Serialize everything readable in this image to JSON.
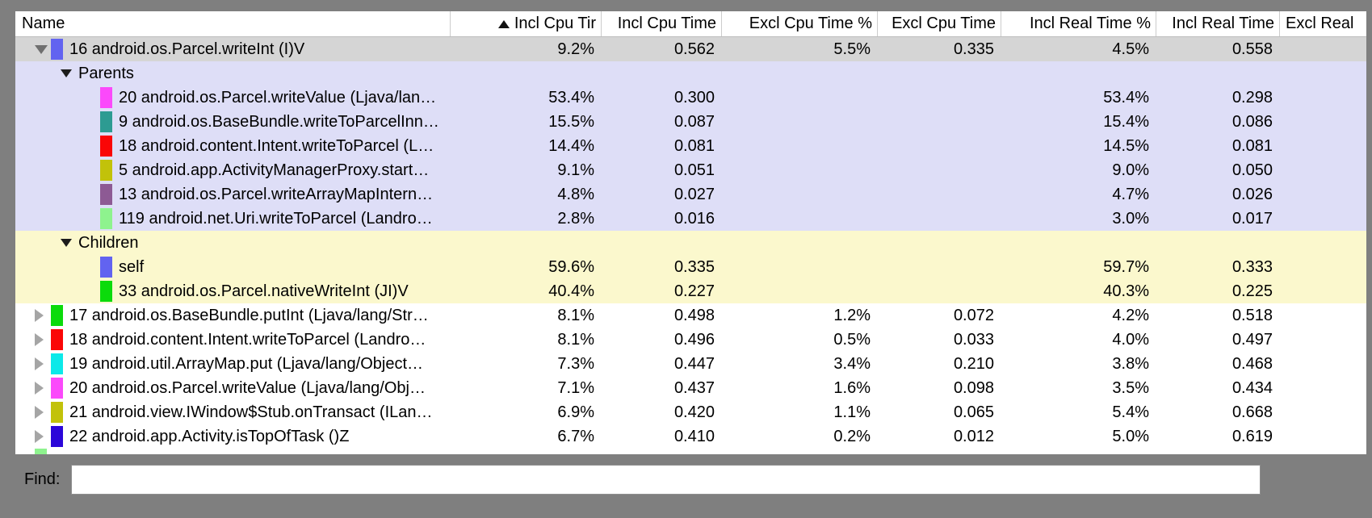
{
  "table": {
    "columns": [
      {
        "key": "name",
        "label": "Name",
        "sort_icon": false,
        "align": "name"
      },
      {
        "key": "incl-cpu-time-pct",
        "label": "Incl Cpu Tir",
        "sort_icon": true,
        "align": "val"
      },
      {
        "key": "incl-cpu-time",
        "label": "Incl Cpu Time",
        "sort_icon": false,
        "align": "val"
      },
      {
        "key": "excl-cpu-time-pct",
        "label": "Excl Cpu Time %",
        "sort_icon": false,
        "align": "val"
      },
      {
        "key": "excl-cpu-time",
        "label": "Excl Cpu Time",
        "sort_icon": false,
        "align": "val"
      },
      {
        "key": "incl-real-time-pct",
        "label": "Incl Real Time %",
        "sort_icon": false,
        "align": "val"
      },
      {
        "key": "incl-real-time",
        "label": "Incl Real Time",
        "sort_icon": false,
        "align": "val"
      },
      {
        "key": "excl-real-time",
        "label": "Excl Real",
        "sort_icon": false,
        "align": "left"
      }
    ],
    "rows": [
      {
        "name": "16 android.os.Parcel.writeInt (I)V",
        "indent": 0,
        "expander": "down",
        "swatch": "#6263f0",
        "highlight": "selected",
        "partial": false,
        "values": [
          "9.2%",
          "0.562",
          "5.5%",
          "0.335",
          "4.5%",
          "0.558",
          ""
        ]
      },
      {
        "name": "Parents",
        "indent": 1,
        "expander": "down-small",
        "swatch": null,
        "highlight": "parents",
        "partial": false,
        "values": [
          "",
          "",
          "",
          "",
          "",
          "",
          ""
        ]
      },
      {
        "name": "20 android.os.Parcel.writeValue (Ljava/lan…",
        "indent": 2,
        "expander": "none",
        "swatch": "#fb49fb",
        "highlight": "parents",
        "partial": false,
        "values": [
          "53.4%",
          "0.300",
          "",
          "",
          "53.4%",
          "0.298",
          ""
        ]
      },
      {
        "name": "9 android.os.BaseBundle.writeToParcelInn…",
        "indent": 2,
        "expander": "none",
        "swatch": "#2d9b92",
        "highlight": "parents",
        "partial": false,
        "values": [
          "15.5%",
          "0.087",
          "",
          "",
          "15.4%",
          "0.086",
          ""
        ]
      },
      {
        "name": "18 android.content.Intent.writeToParcel (L…",
        "indent": 2,
        "expander": "none",
        "swatch": "#fa0606",
        "highlight": "parents",
        "partial": false,
        "values": [
          "14.4%",
          "0.081",
          "",
          "",
          "14.5%",
          "0.081",
          ""
        ]
      },
      {
        "name": "5 android.app.ActivityManagerProxy.start…",
        "indent": 2,
        "expander": "none",
        "swatch": "#c2c20a",
        "highlight": "parents",
        "partial": false,
        "values": [
          "9.1%",
          "0.051",
          "",
          "",
          "9.0%",
          "0.050",
          ""
        ]
      },
      {
        "name": "13 android.os.Parcel.writeArrayMapIntern…",
        "indent": 2,
        "expander": "none",
        "swatch": "#8d5a94",
        "highlight": "parents",
        "partial": false,
        "values": [
          "4.8%",
          "0.027",
          "",
          "",
          "4.7%",
          "0.026",
          ""
        ]
      },
      {
        "name": "119 android.net.Uri.writeToParcel (Landro…",
        "indent": 2,
        "expander": "none",
        "swatch": "#8ef38e",
        "highlight": "parents",
        "partial": false,
        "values": [
          "2.8%",
          "0.016",
          "",
          "",
          "3.0%",
          "0.017",
          ""
        ]
      },
      {
        "name": "Children",
        "indent": 1,
        "expander": "down-small",
        "swatch": null,
        "highlight": "children",
        "partial": false,
        "values": [
          "",
          "",
          "",
          "",
          "",
          "",
          ""
        ]
      },
      {
        "name": "self",
        "indent": 2,
        "expander": "none",
        "swatch": "#6263f0",
        "highlight": "children",
        "partial": false,
        "values": [
          "59.6%",
          "0.335",
          "",
          "",
          "59.7%",
          "0.333",
          ""
        ]
      },
      {
        "name": "33 android.os.Parcel.nativeWriteInt (JI)V",
        "indent": 2,
        "expander": "none",
        "swatch": "#0bdb0b",
        "highlight": "children",
        "partial": false,
        "values": [
          "40.4%",
          "0.227",
          "",
          "",
          "40.3%",
          "0.225",
          ""
        ]
      },
      {
        "name": "17 android.os.BaseBundle.putInt (Ljava/lang/Str…",
        "indent": 0,
        "expander": "right",
        "swatch": "#0bdb0b",
        "highlight": "white",
        "partial": false,
        "values": [
          "8.1%",
          "0.498",
          "1.2%",
          "0.072",
          "4.2%",
          "0.518",
          ""
        ]
      },
      {
        "name": "18 android.content.Intent.writeToParcel (Landro…",
        "indent": 0,
        "expander": "right",
        "swatch": "#fa0606",
        "highlight": "white",
        "partial": false,
        "values": [
          "8.1%",
          "0.496",
          "0.5%",
          "0.033",
          "4.0%",
          "0.497",
          ""
        ]
      },
      {
        "name": "19 android.util.ArrayMap.put (Ljava/lang/Object…",
        "indent": 0,
        "expander": "right",
        "swatch": "#0ce9e9",
        "highlight": "white",
        "partial": false,
        "values": [
          "7.3%",
          "0.447",
          "3.4%",
          "0.210",
          "3.8%",
          "0.468",
          ""
        ]
      },
      {
        "name": "20 android.os.Parcel.writeValue (Ljava/lang/Obj…",
        "indent": 0,
        "expander": "right",
        "swatch": "#fb49fb",
        "highlight": "white",
        "partial": false,
        "values": [
          "7.1%",
          "0.437",
          "1.6%",
          "0.098",
          "3.5%",
          "0.434",
          ""
        ]
      },
      {
        "name": "21 android.view.IWindow$Stub.onTransact (ILan…",
        "indent": 0,
        "expander": "right",
        "swatch": "#c2c20a",
        "highlight": "white",
        "partial": false,
        "values": [
          "6.9%",
          "0.420",
          "1.1%",
          "0.065",
          "5.4%",
          "0.668",
          ""
        ]
      },
      {
        "name": "22 android.app.Activity.isTopOfTask ()Z",
        "indent": 0,
        "expander": "right",
        "swatch": "#2b06d9",
        "highlight": "white",
        "partial": false,
        "values": [
          "6.7%",
          "0.410",
          "0.2%",
          "0.012",
          "5.0%",
          "0.619",
          ""
        ]
      },
      {
        "name": "",
        "indent": 0,
        "expander": "none",
        "swatch": "#8ef38e",
        "highlight": "white",
        "partial": true,
        "values": [
          "",
          "",
          "",
          "",
          "",
          "",
          ""
        ]
      }
    ]
  },
  "find": {
    "label": "Find:",
    "value": ""
  },
  "colors": {
    "window_background": "#7f7f7f",
    "selected_row": "#d5d5d5",
    "parents_section": "#dedef7",
    "children_section": "#fbf8cd"
  }
}
